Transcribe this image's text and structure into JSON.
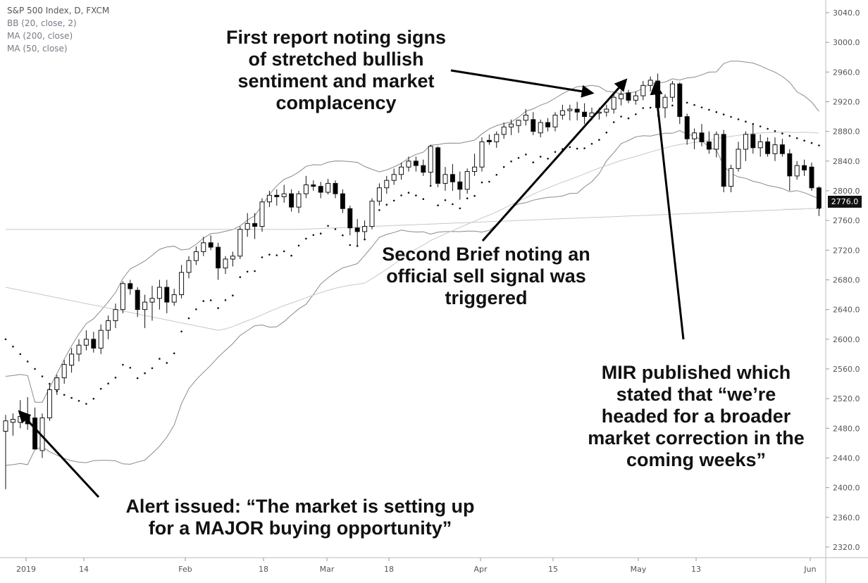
{
  "legend": {
    "symbol": "S&P 500 Index, D, FXCM",
    "bb": "BB (20, close, 2)",
    "ma200": "MA (200, close)",
    "ma50": "MA (50, close)"
  },
  "last_price_label": "2776.0",
  "annotations": [
    {
      "id": "first-report",
      "text": "First report noting signs\nof stretched bullish\nsentiment and market\ncomplacency"
    },
    {
      "id": "second-brief",
      "text": "Second Brief noting an\nofficial sell signal was\ntriggered"
    },
    {
      "id": "mir",
      "text": "MIR published which\nstated that “we’re\nheaded for a broader\nmarket correction in the\ncoming weeks”"
    },
    {
      "id": "alert",
      "text": "Alert issued: “The market is setting up\nfor a MAJOR buying opportunity”"
    }
  ],
  "colors": {
    "up_fill": "#ffffff",
    "down_fill": "#000000",
    "candle_stroke": "#111111",
    "band": "#8a8a8a",
    "ma": "#c8c8c8",
    "sar": "#111111",
    "arrow": "#000000"
  },
  "chart_data": {
    "type": "candlestick",
    "title": "S&P 500 Index, D, FXCM",
    "ylim": [
      2300,
      3040
    ],
    "y_ticks": [
      2320,
      2360,
      2400,
      2440,
      2480,
      2520,
      2560,
      2600,
      2640,
      2680,
      2720,
      2760,
      2800,
      2840,
      2880,
      2920,
      2960,
      3000,
      3040
    ],
    "x_tick_labels": [
      "2019",
      "14",
      "Feb",
      "18",
      "Mar",
      "18",
      "Apr",
      "15",
      "May",
      "13",
      "Jun"
    ],
    "last_price": 2776.0,
    "ohlc": [
      [
        2476,
        2498,
        2398,
        2490
      ],
      [
        2488,
        2500,
        2470,
        2492
      ],
      [
        2488,
        2518,
        2480,
        2496
      ],
      [
        2498,
        2522,
        2478,
        2486
      ],
      [
        2494,
        2508,
        2455,
        2452
      ],
      [
        2450,
        2500,
        2440,
        2494
      ],
      [
        2494,
        2540,
        2490,
        2532
      ],
      [
        2532,
        2552,
        2525,
        2548
      ],
      [
        2548,
        2572,
        2540,
        2566
      ],
      [
        2565,
        2588,
        2555,
        2580
      ],
      [
        2580,
        2600,
        2570,
        2592
      ],
      [
        2592,
        2612,
        2585,
        2600
      ],
      [
        2600,
        2610,
        2582,
        2588
      ],
      [
        2588,
        2620,
        2580,
        2612
      ],
      [
        2612,
        2632,
        2600,
        2625
      ],
      [
        2625,
        2648,
        2615,
        2640
      ],
      [
        2640,
        2678,
        2635,
        2675
      ],
      [
        2675,
        2680,
        2660,
        2668
      ],
      [
        2666,
        2670,
        2630,
        2640
      ],
      [
        2640,
        2660,
        2615,
        2650
      ],
      [
        2650,
        2672,
        2625,
        2655
      ],
      [
        2655,
        2680,
        2640,
        2670
      ],
      [
        2670,
        2680,
        2635,
        2650
      ],
      [
        2650,
        2668,
        2645,
        2660
      ],
      [
        2660,
        2700,
        2655,
        2690
      ],
      [
        2690,
        2712,
        2682,
        2706
      ],
      [
        2706,
        2725,
        2700,
        2718
      ],
      [
        2718,
        2738,
        2712,
        2730
      ],
      [
        2730,
        2740,
        2720,
        2724
      ],
      [
        2724,
        2730,
        2680,
        2696
      ],
      [
        2696,
        2712,
        2688,
        2708
      ],
      [
        2708,
        2718,
        2698,
        2712
      ],
      [
        2712,
        2752,
        2708,
        2748
      ],
      [
        2748,
        2770,
        2738,
        2756
      ],
      [
        2756,
        2770,
        2735,
        2752
      ],
      [
        2752,
        2790,
        2745,
        2785
      ],
      [
        2785,
        2800,
        2778,
        2794
      ],
      [
        2794,
        2802,
        2780,
        2792
      ],
      [
        2792,
        2808,
        2784,
        2796
      ],
      [
        2796,
        2802,
        2772,
        2778
      ],
      [
        2778,
        2800,
        2770,
        2796
      ],
      [
        2796,
        2820,
        2790,
        2808
      ],
      [
        2808,
        2814,
        2800,
        2806
      ],
      [
        2806,
        2812,
        2790,
        2798
      ],
      [
        2798,
        2816,
        2795,
        2810
      ],
      [
        2810,
        2814,
        2790,
        2796
      ],
      [
        2796,
        2802,
        2770,
        2776
      ],
      [
        2776,
        2780,
        2740,
        2750
      ],
      [
        2750,
        2762,
        2726,
        2745
      ],
      [
        2745,
        2760,
        2735,
        2752
      ],
      [
        2752,
        2790,
        2748,
        2786
      ],
      [
        2786,
        2810,
        2780,
        2804
      ],
      [
        2804,
        2820,
        2796,
        2814
      ],
      [
        2814,
        2830,
        2808,
        2822
      ],
      [
        2822,
        2838,
        2815,
        2832
      ],
      [
        2832,
        2846,
        2826,
        2840
      ],
      [
        2840,
        2846,
        2826,
        2834
      ],
      [
        2834,
        2842,
        2820,
        2825
      ],
      [
        2825,
        2862,
        2808,
        2860
      ],
      [
        2858,
        2860,
        2805,
        2810
      ],
      [
        2810,
        2832,
        2800,
        2822
      ],
      [
        2822,
        2836,
        2800,
        2812
      ],
      [
        2812,
        2826,
        2788,
        2802
      ],
      [
        2802,
        2830,
        2796,
        2826
      ],
      [
        2826,
        2850,
        2820,
        2832
      ],
      [
        2832,
        2872,
        2826,
        2866
      ],
      [
        2868,
        2876,
        2862,
        2866
      ],
      [
        2866,
        2880,
        2858,
        2876
      ],
      [
        2876,
        2892,
        2870,
        2886
      ],
      [
        2886,
        2896,
        2875,
        2890
      ],
      [
        2888,
        2896,
        2878,
        2895
      ],
      [
        2895,
        2910,
        2888,
        2902
      ],
      [
        2896,
        2906,
        2875,
        2880
      ],
      [
        2878,
        2896,
        2872,
        2892
      ],
      [
        2892,
        2898,
        2880,
        2886
      ],
      [
        2886,
        2906,
        2880,
        2902
      ],
      [
        2902,
        2916,
        2896,
        2908
      ],
      [
        2908,
        2916,
        2895,
        2910
      ],
      [
        2910,
        2920,
        2895,
        2906
      ],
      [
        2906,
        2918,
        2890,
        2900
      ],
      [
        2900,
        2912,
        2895,
        2905
      ],
      [
        2905,
        2912,
        2896,
        2906
      ],
      [
        2906,
        2916,
        2900,
        2910
      ],
      [
        2910,
        2932,
        2904,
        2926
      ],
      [
        2924,
        2935,
        2915,
        2930
      ],
      [
        2932,
        2936,
        2918,
        2922
      ],
      [
        2922,
        2934,
        2916,
        2928
      ],
      [
        2928,
        2948,
        2922,
        2942
      ],
      [
        2942,
        2954,
        2934,
        2949
      ],
      [
        2948,
        2958,
        2900,
        2912
      ],
      [
        2912,
        2930,
        2898,
        2926
      ],
      [
        2926,
        2948,
        2920,
        2944
      ],
      [
        2944,
        2946,
        2890,
        2900
      ],
      [
        2900,
        2904,
        2862,
        2870
      ],
      [
        2870,
        2884,
        2856,
        2878
      ],
      [
        2878,
        2890,
        2860,
        2866
      ],
      [
        2866,
        2880,
        2850,
        2856
      ],
      [
        2856,
        2880,
        2845,
        2876
      ],
      [
        2876,
        2882,
        2798,
        2806
      ],
      [
        2806,
        2835,
        2798,
        2830
      ],
      [
        2830,
        2866,
        2826,
        2856
      ],
      [
        2856,
        2880,
        2840,
        2876
      ],
      [
        2876,
        2890,
        2850,
        2858
      ],
      [
        2858,
        2876,
        2846,
        2866
      ],
      [
        2866,
        2872,
        2846,
        2850
      ],
      [
        2850,
        2872,
        2840,
        2862
      ],
      [
        2862,
        2870,
        2846,
        2850
      ],
      [
        2850,
        2856,
        2800,
        2820
      ],
      [
        2820,
        2840,
        2815,
        2834
      ],
      [
        2834,
        2842,
        2820,
        2828
      ],
      [
        2832,
        2838,
        2800,
        2804
      ],
      [
        2804,
        2806,
        2766,
        2776
      ]
    ]
  }
}
